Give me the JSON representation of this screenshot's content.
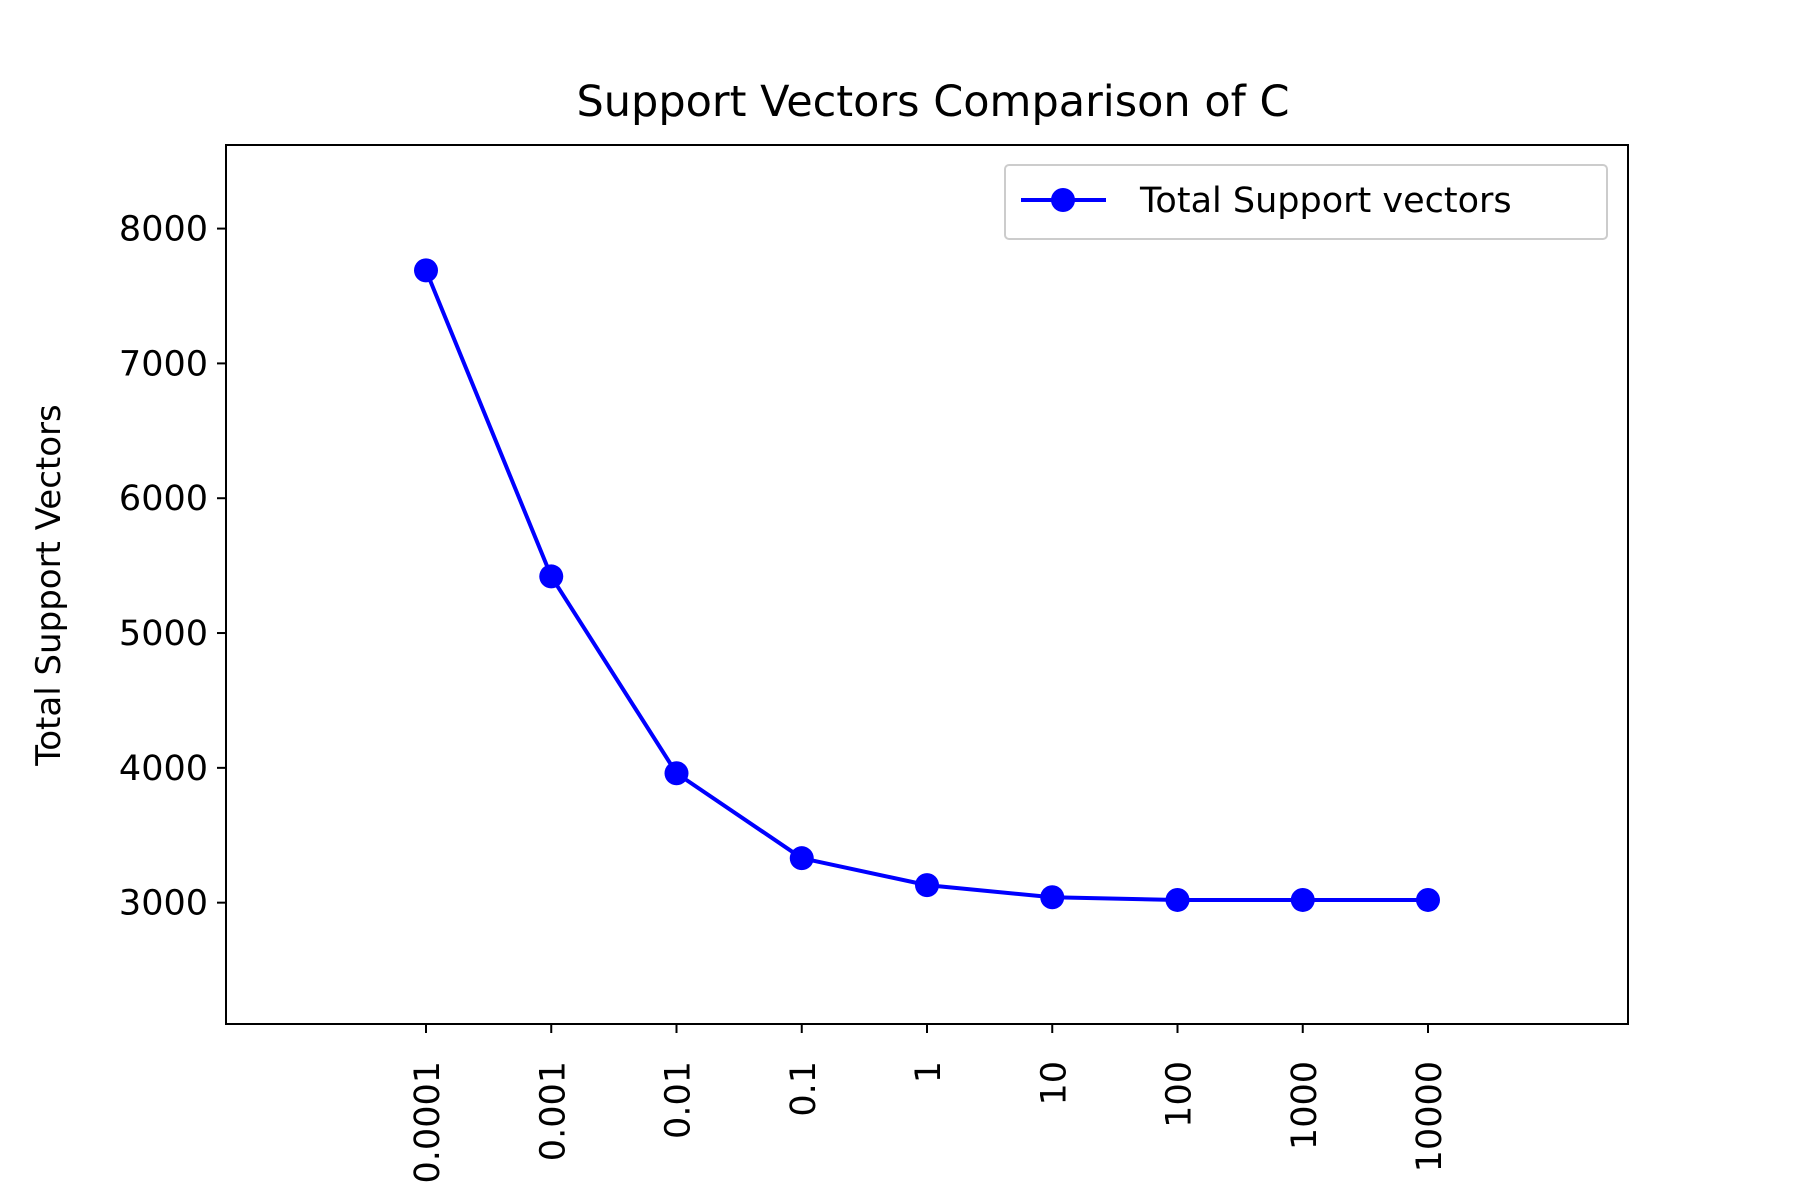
{
  "chart_data": {
    "type": "line",
    "title": "Support Vectors Comparison of C",
    "xlabel": "",
    "ylabel": "Total Support Vectors",
    "categories": [
      "0.0001",
      "0.001",
      "0.01",
      "0.1",
      "1",
      "10",
      "100",
      "1000",
      "10000"
    ],
    "series": [
      {
        "name": "Total Support vectors",
        "values": [
          7690,
          5420,
          3960,
          3330,
          3130,
          3040,
          3020,
          3020,
          3020
        ],
        "color": "#0000ff",
        "marker": "circle"
      }
    ],
    "y_ticks": [
      3000,
      4000,
      5000,
      6000,
      7000,
      8000
    ],
    "ylim": [
      2100,
      8620
    ],
    "x_tick_rotation": "vertical",
    "grid": false,
    "legend_position": "top-right"
  }
}
